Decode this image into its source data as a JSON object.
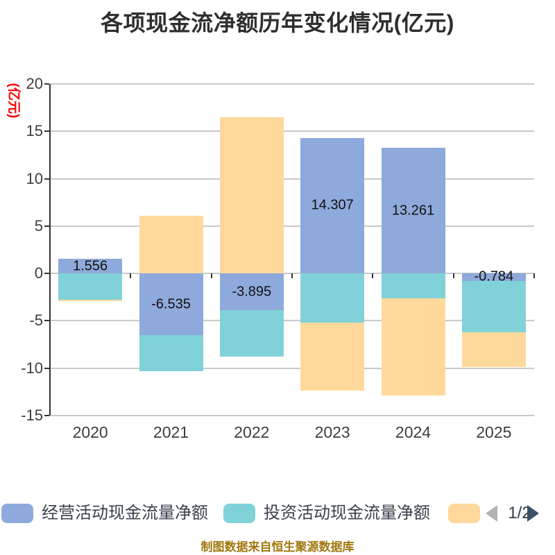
{
  "title": "各项现金流净额历年变化情况(亿元)",
  "y_axis_name": "(亿元)",
  "footer": "制图数据来自恒生聚源数据库",
  "legend": {
    "items": [
      {
        "label": "经营活动现金流量净额",
        "color": "#8EA9DB"
      },
      {
        "label": "投资活动现金流量净额",
        "color": "#80D2D8"
      },
      {
        "label": "",
        "color": "#FFD99C"
      }
    ],
    "pager": {
      "text": "1/2",
      "prev_color": "#b3b3b3",
      "next_color": "#3a5169"
    }
  },
  "chart_data": {
    "type": "bar",
    "stacked": true,
    "title": "各项现金流净额历年变化情况(亿元)",
    "ylabel": "(亿元)",
    "ylim": [
      -15,
      20
    ],
    "ytick_interval": 5,
    "yticks": [
      "20",
      "15",
      "10",
      "5",
      "0",
      "-5",
      "-10",
      "-15"
    ],
    "grid": true,
    "legend_position": "bottom",
    "categories": [
      "2020",
      "2021",
      "2022",
      "2023",
      "2024",
      "2025"
    ],
    "series": [
      {
        "name": "经营活动现金流量净额",
        "color": "#8EA9DB",
        "values": [
          1.556,
          -6.535,
          -3.895,
          14.307,
          13.261,
          -0.784
        ],
        "labels": [
          "1.556",
          "-6.535",
          "-3.895",
          "14.307",
          "13.261",
          "-0.784"
        ]
      },
      {
        "name": "投资活动现金流量净额",
        "color": "#80D2D8",
        "values": [
          -2.75,
          -3.8,
          -4.9,
          -5.2,
          -2.6,
          -5.4
        ],
        "labels": null
      },
      {
        "name": "",
        "color": "#FFD99C",
        "values": [
          -0.15,
          6.1,
          16.5,
          -7.2,
          -10.3,
          -3.7
        ],
        "labels": null
      }
    ]
  }
}
